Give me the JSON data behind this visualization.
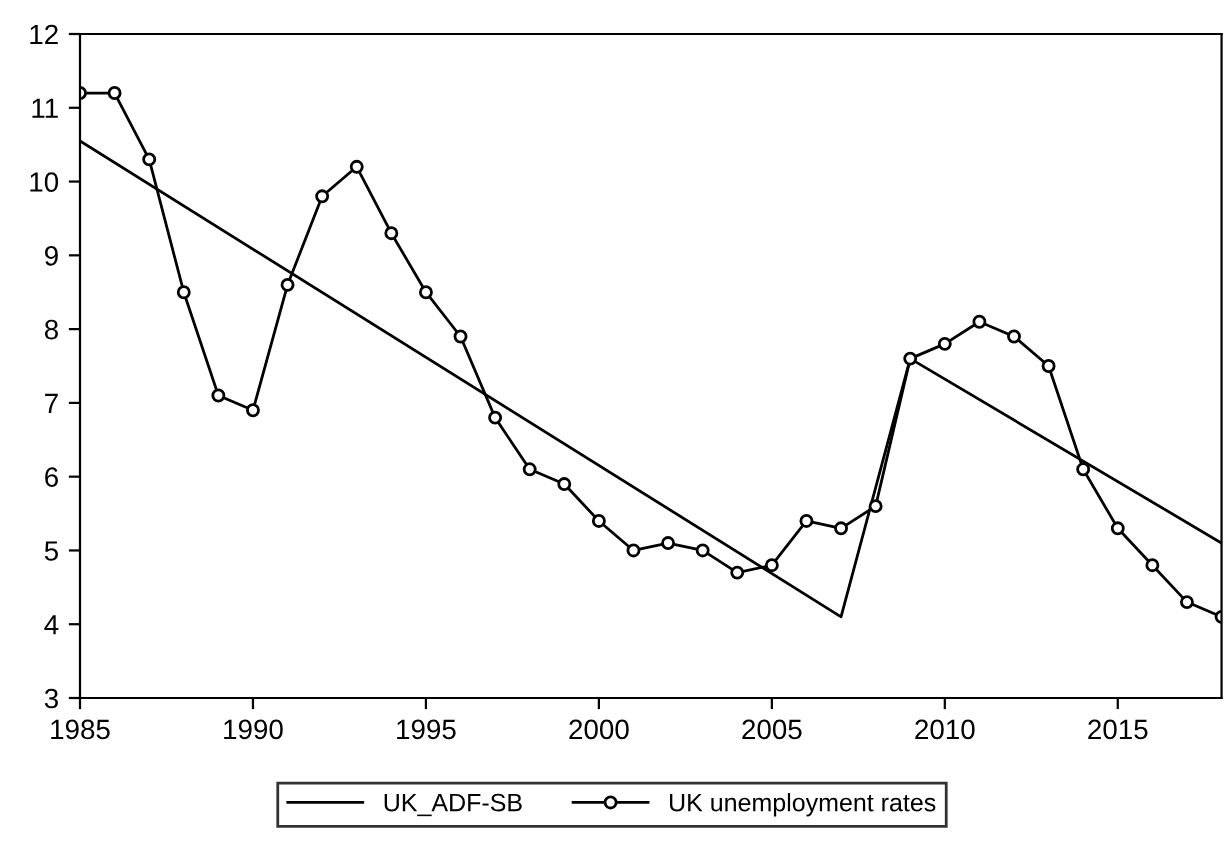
{
  "chart_data": {
    "type": "line",
    "series": [
      {
        "name": "UK_ADF-SB",
        "color": "#000000",
        "marker": "none",
        "x": [
          1985,
          2007,
          2009,
          2018
        ],
        "values": [
          10.55,
          4.1,
          7.6,
          5.1
        ]
      },
      {
        "name": "UK unemployment rates",
        "color": "#000000",
        "marker": "circle",
        "x": [
          1985,
          1986,
          1987,
          1988,
          1989,
          1990,
          1991,
          1992,
          1993,
          1994,
          1995,
          1996,
          1997,
          1998,
          1999,
          2000,
          2001,
          2002,
          2003,
          2004,
          2005,
          2006,
          2007,
          2008,
          2009,
          2010,
          2011,
          2012,
          2013,
          2014,
          2015,
          2016,
          2017,
          2018
        ],
        "values": [
          11.2,
          11.2,
          10.3,
          8.5,
          7.1,
          6.9,
          8.6,
          9.8,
          10.2,
          9.3,
          8.5,
          7.9,
          6.8,
          6.1,
          5.9,
          5.4,
          5.0,
          5.1,
          5.0,
          4.7,
          4.8,
          5.4,
          5.3,
          5.6,
          7.6,
          7.8,
          8.1,
          7.9,
          7.5,
          6.1,
          5.3,
          4.8,
          4.3,
          4.1
        ]
      }
    ],
    "xlim": [
      1985,
      2018
    ],
    "xticks": [
      1985,
      1990,
      1995,
      2000,
      2005,
      2010,
      2015
    ],
    "ylim": [
      3,
      12
    ],
    "yticks": [
      3,
      4,
      5,
      6,
      7,
      8,
      9,
      10,
      11,
      12
    ],
    "grid": false,
    "legend": "bottom",
    "line_style": "solid"
  }
}
